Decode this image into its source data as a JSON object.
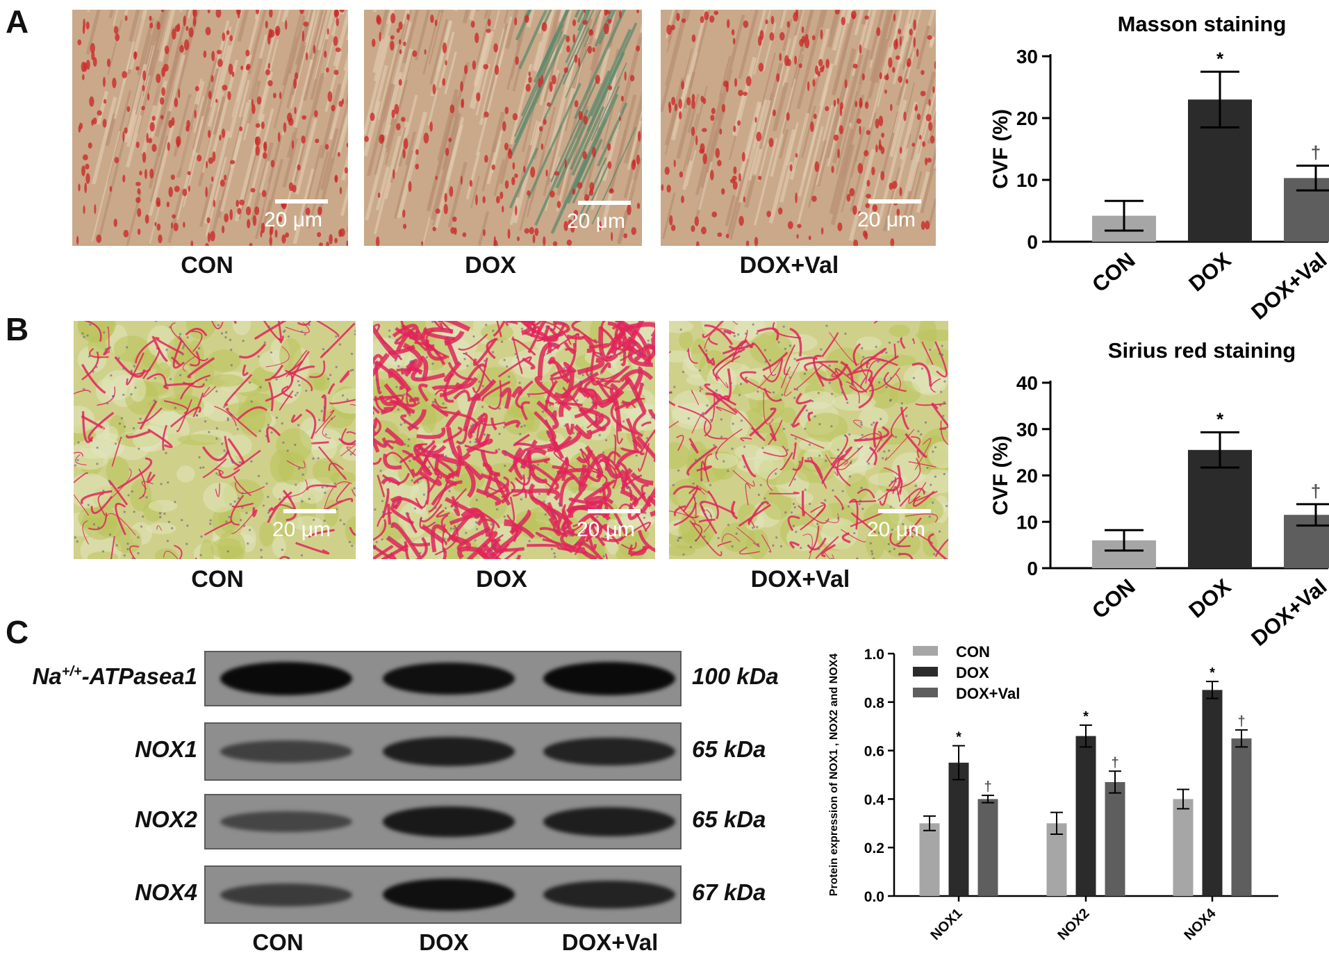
{
  "panels": {
    "a": {
      "letter": "A",
      "images": [
        {
          "label": "CON",
          "scale_text": "20 μm"
        },
        {
          "label": "DOX",
          "scale_text": "20 μm"
        },
        {
          "label": "DOX+Val",
          "scale_text": "20 μm"
        }
      ]
    },
    "b": {
      "letter": "B",
      "images": [
        {
          "label": "CON",
          "scale_text": "20 μm"
        },
        {
          "label": "DOX",
          "scale_text": "20 μm"
        },
        {
          "label": "DOX+Val",
          "scale_text": "20 μm"
        }
      ]
    },
    "c": {
      "letter": "C",
      "blot_rows": [
        {
          "name": "Na+/+-ATPasea1",
          "name_base": "Na",
          "name_sup": "+/+",
          "name_rest": "-ATPasea1",
          "kda": "100 kDa",
          "intensity": [
            1.0,
            0.95,
            1.0
          ]
        },
        {
          "name": "NOX1",
          "kda": "65 kDa",
          "intensity": [
            0.45,
            0.8,
            0.75
          ]
        },
        {
          "name": "NOX2",
          "kda": "65 kDa",
          "intensity": [
            0.4,
            0.85,
            0.8
          ]
        },
        {
          "name": "NOX4",
          "kda": "67 kDa",
          "intensity": [
            0.5,
            0.95,
            0.75
          ]
        }
      ],
      "blot_groups": [
        "CON",
        "DOX",
        "DOX+Val"
      ]
    }
  },
  "colors": {
    "con": "#a6a6a6",
    "dox": "#2b2b2b",
    "dox_val": "#5e5e5e",
    "masson_bg": "#c9a98a",
    "masson_red": "#cc2a2a",
    "masson_green": "#5f8a6e",
    "sirius_bg": "#cfd08a",
    "sirius_red": "#e0245a"
  },
  "chart_data": [
    {
      "type": "bar",
      "title": "Masson staining",
      "ylabel": "CVF (%)",
      "categories": [
        "CON",
        "DOX",
        "DOX+Val"
      ],
      "values": [
        4.2,
        23,
        10.3
      ],
      "errors": [
        2.4,
        4.5,
        2.0
      ],
      "annotations": [
        "",
        "*",
        "†"
      ],
      "ylim": [
        0,
        30
      ],
      "yticks": [
        0,
        10,
        20,
        30
      ]
    },
    {
      "type": "bar",
      "title": "Sirius red staining",
      "ylabel": "CVF (%)",
      "categories": [
        "CON",
        "DOX",
        "DOX+Val"
      ],
      "values": [
        6,
        25.5,
        11.5
      ],
      "errors": [
        2.2,
        3.8,
        2.3
      ],
      "annotations": [
        "",
        "*",
        "†"
      ],
      "ylim": [
        0,
        40
      ],
      "yticks": [
        0,
        10,
        20,
        30,
        40
      ]
    },
    {
      "type": "bar",
      "title": "",
      "ylabel": "Protein expression of NOX1 , NOX2 and NOX4",
      "categories": [
        "NOX1",
        "NOX2",
        "NOX4"
      ],
      "series": [
        {
          "name": "CON",
          "values": [
            0.3,
            0.3,
            0.4
          ],
          "errors": [
            0.03,
            0.045,
            0.04
          ],
          "annotations": [
            "",
            "",
            ""
          ]
        },
        {
          "name": "DOX",
          "values": [
            0.55,
            0.66,
            0.85
          ],
          "errors": [
            0.07,
            0.045,
            0.035
          ],
          "annotations": [
            "*",
            "*",
            "*"
          ]
        },
        {
          "name": "DOX+Val",
          "values": [
            0.4,
            0.47,
            0.65
          ],
          "errors": [
            0.015,
            0.045,
            0.035
          ],
          "annotations": [
            "†",
            "†",
            "†"
          ]
        }
      ],
      "ylim": [
        0,
        1.0
      ],
      "yticks": [
        "0.0",
        "0.2",
        "0.4",
        "0.6",
        "0.8",
        "1.0"
      ],
      "legend": "top-left"
    }
  ]
}
